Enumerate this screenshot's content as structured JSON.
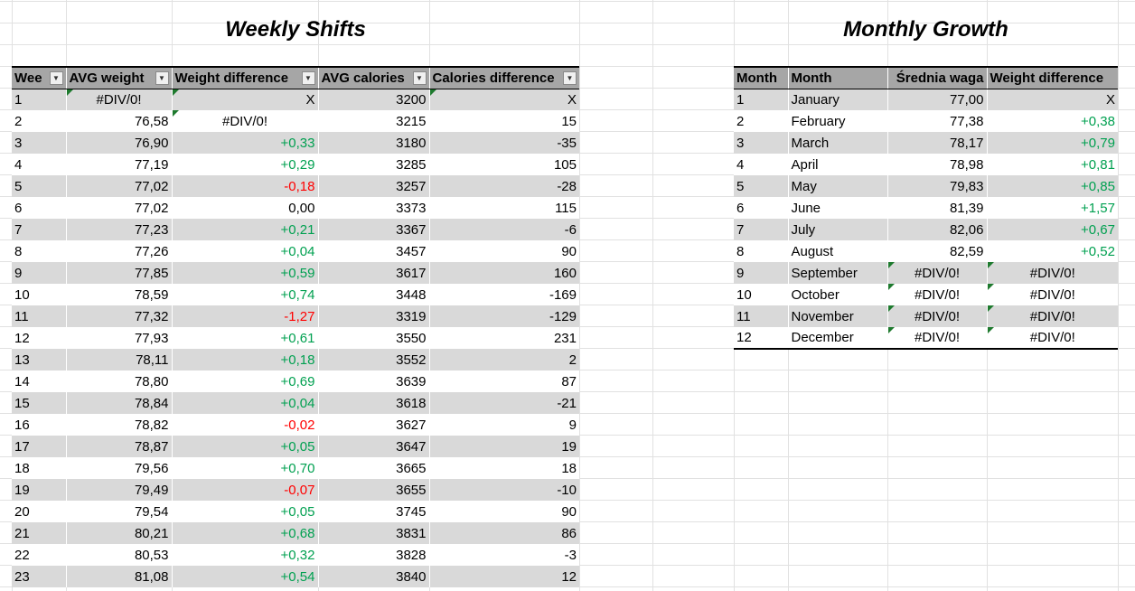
{
  "weekly": {
    "title": "Weekly Shifts",
    "headers": [
      "Wee",
      "AVG weight",
      "Weight difference",
      "AVG calories",
      "Calories difference"
    ],
    "rows": [
      {
        "week": "1",
        "weight": "#DIV/0!",
        "wdiff": "X",
        "cal": "3200",
        "cdiff": "X",
        "tri_weight": true,
        "tri_wdiff": true,
        "tri_cdiff": true
      },
      {
        "week": "2",
        "weight": "76,58",
        "wdiff": "#DIV/0!",
        "cal": "3215",
        "cdiff": "15",
        "tri_wdiff": true
      },
      {
        "week": "3",
        "weight": "76,90",
        "wdiff": "+0,33",
        "cal": "3180",
        "cdiff": "-35"
      },
      {
        "week": "4",
        "weight": "77,19",
        "wdiff": "+0,29",
        "cal": "3285",
        "cdiff": "105"
      },
      {
        "week": "5",
        "weight": "77,02",
        "wdiff": "-0,18",
        "cal": "3257",
        "cdiff": "-28"
      },
      {
        "week": "6",
        "weight": "77,02",
        "wdiff": "0,00",
        "cal": "3373",
        "cdiff": "115"
      },
      {
        "week": "7",
        "weight": "77,23",
        "wdiff": "+0,21",
        "cal": "3367",
        "cdiff": "-6"
      },
      {
        "week": "8",
        "weight": "77,26",
        "wdiff": "+0,04",
        "cal": "3457",
        "cdiff": "90"
      },
      {
        "week": "9",
        "weight": "77,85",
        "wdiff": "+0,59",
        "cal": "3617",
        "cdiff": "160"
      },
      {
        "week": "10",
        "weight": "78,59",
        "wdiff": "+0,74",
        "cal": "3448",
        "cdiff": "-169"
      },
      {
        "week": "11",
        "weight": "77,32",
        "wdiff": "-1,27",
        "cal": "3319",
        "cdiff": "-129"
      },
      {
        "week": "12",
        "weight": "77,93",
        "wdiff": "+0,61",
        "cal": "3550",
        "cdiff": "231"
      },
      {
        "week": "13",
        "weight": "78,11",
        "wdiff": "+0,18",
        "cal": "3552",
        "cdiff": "2"
      },
      {
        "week": "14",
        "weight": "78,80",
        "wdiff": "+0,69",
        "cal": "3639",
        "cdiff": "87"
      },
      {
        "week": "15",
        "weight": "78,84",
        "wdiff": "+0,04",
        "cal": "3618",
        "cdiff": "-21"
      },
      {
        "week": "16",
        "weight": "78,82",
        "wdiff": "-0,02",
        "cal": "3627",
        "cdiff": "9"
      },
      {
        "week": "17",
        "weight": "78,87",
        "wdiff": "+0,05",
        "cal": "3647",
        "cdiff": "19"
      },
      {
        "week": "18",
        "weight": "79,56",
        "wdiff": "+0,70",
        "cal": "3665",
        "cdiff": "18"
      },
      {
        "week": "19",
        "weight": "79,49",
        "wdiff": "-0,07",
        "cal": "3655",
        "cdiff": "-10"
      },
      {
        "week": "20",
        "weight": "79,54",
        "wdiff": "+0,05",
        "cal": "3745",
        "cdiff": "90"
      },
      {
        "week": "21",
        "weight": "80,21",
        "wdiff": "+0,68",
        "cal": "3831",
        "cdiff": "86"
      },
      {
        "week": "22",
        "weight": "80,53",
        "wdiff": "+0,32",
        "cal": "3828",
        "cdiff": "-3"
      },
      {
        "week": "23",
        "weight": "81,08",
        "wdiff": "+0,54",
        "cal": "3840",
        "cdiff": "12"
      }
    ]
  },
  "monthly": {
    "title": "Monthly Growth",
    "headers": [
      "Month",
      "Month",
      "Średnia waga",
      "Weight difference"
    ],
    "rows": [
      {
        "num": "1",
        "name": "January",
        "weight": "77,00",
        "wdiff": "X"
      },
      {
        "num": "2",
        "name": "February",
        "weight": "77,38",
        "wdiff": "+0,38"
      },
      {
        "num": "3",
        "name": "March",
        "weight": "78,17",
        "wdiff": "+0,79"
      },
      {
        "num": "4",
        "name": "April",
        "weight": "78,98",
        "wdiff": "+0,81"
      },
      {
        "num": "5",
        "name": "May",
        "weight": "79,83",
        "wdiff": "+0,85"
      },
      {
        "num": "6",
        "name": "June",
        "weight": "81,39",
        "wdiff": "+1,57"
      },
      {
        "num": "7",
        "name": "July",
        "weight": "82,06",
        "wdiff": "+0,67"
      },
      {
        "num": "8",
        "name": "August",
        "weight": "82,59",
        "wdiff": "+0,52"
      },
      {
        "num": "9",
        "name": "September",
        "weight": "#DIV/0!",
        "wdiff": "#DIV/0!",
        "tri_weight": true,
        "tri_wdiff": true
      },
      {
        "num": "10",
        "name": "October",
        "weight": "#DIV/0!",
        "wdiff": "#DIV/0!",
        "tri_weight": true,
        "tri_wdiff": true
      },
      {
        "num": "11",
        "name": "November",
        "weight": "#DIV/0!",
        "wdiff": "#DIV/0!",
        "tri_weight": true,
        "tri_wdiff": true
      },
      {
        "num": "12",
        "name": "December",
        "weight": "#DIV/0!",
        "wdiff": "#DIV/0!",
        "tri_weight": true,
        "tri_wdiff": true
      }
    ]
  },
  "colors": {
    "positive": "#00a050",
    "negative": "#ff0000",
    "header_fill": "#a6a6a6",
    "band_fill": "#d9d9d9",
    "gridline": "#e1e1e1",
    "error_marker": "#1e7a2e"
  },
  "icons": {
    "filter": "filter-dropdown-icon",
    "error_marker": "error-indicator-icon"
  }
}
